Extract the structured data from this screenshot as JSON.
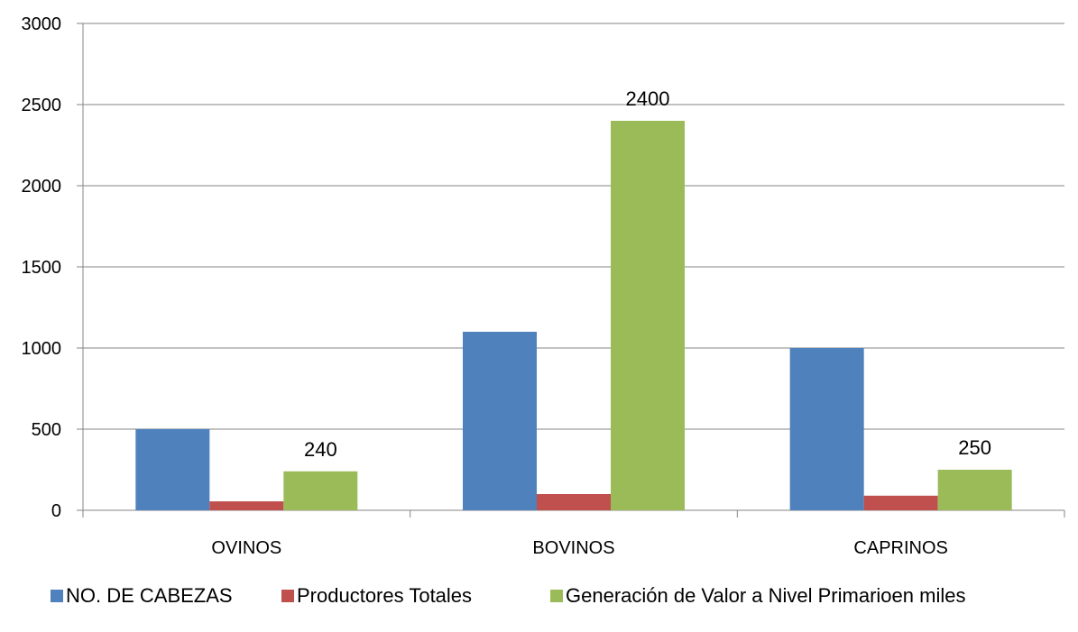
{
  "chart_data": {
    "type": "bar",
    "title": "",
    "xlabel": "",
    "ylabel": "",
    "categories": [
      "OVINOS",
      "BOVINOS",
      "CAPRINOS"
    ],
    "series": [
      {
        "name": "NO. DE CABEZAS",
        "color": "#4F81BD",
        "values": [
          500,
          1100,
          1000
        ],
        "data_labels": [
          null,
          null,
          null
        ]
      },
      {
        "name": "Productores Totales",
        "color": "#C0504D",
        "values": [
          55,
          100,
          90
        ],
        "data_labels": [
          null,
          null,
          null
        ]
      },
      {
        "name": "Generación de Valor a Nivel Primarioen miles",
        "color": "#9BBB59",
        "values": [
          240,
          2400,
          250
        ],
        "data_labels": [
          "240",
          "2400",
          "250"
        ]
      }
    ],
    "ylim": [
      0,
      3000
    ],
    "yticks": [
      0,
      500,
      1000,
      1500,
      2000,
      2500,
      3000
    ],
    "grid": true,
    "legend_position": "bottom"
  }
}
